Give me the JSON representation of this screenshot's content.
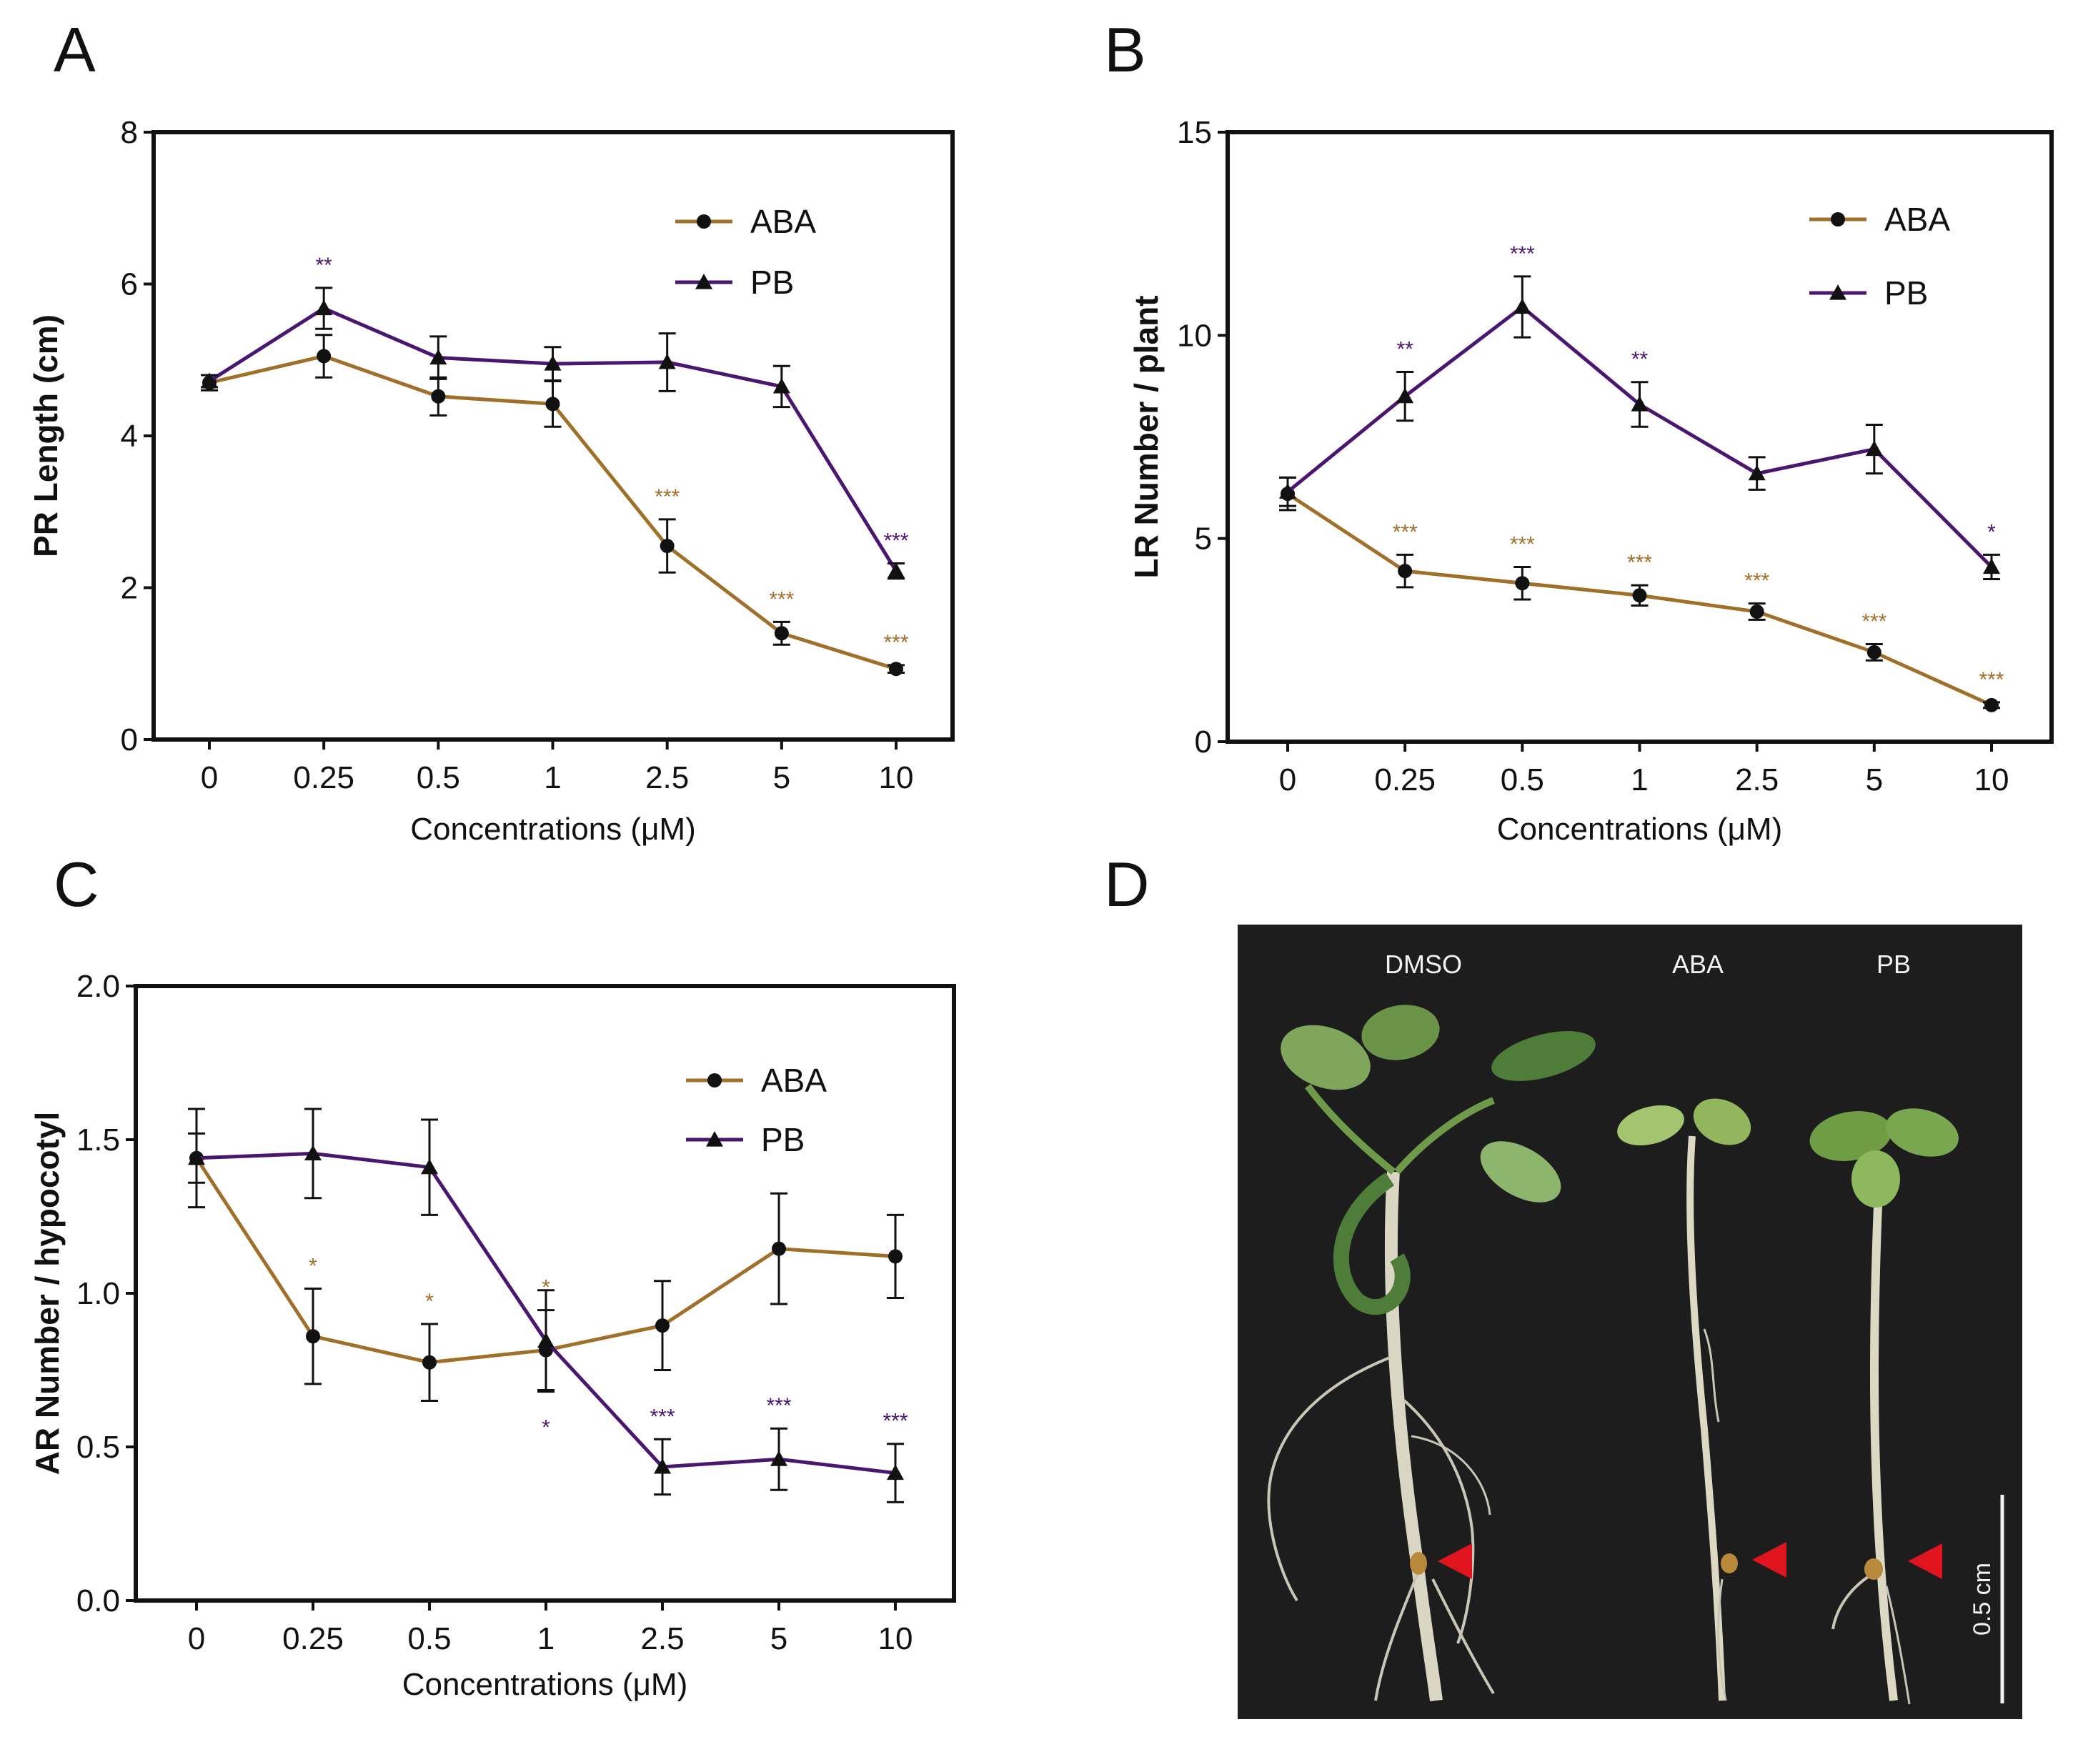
{
  "colors": {
    "ABA": "#a0702a",
    "PB": "#4b1670",
    "axis": "#111111",
    "photo_bg": "#1d1d1d",
    "arrow": "#e0141e"
  },
  "chart_data": [
    {
      "panel": "A",
      "type": "line",
      "categories": [
        "0",
        "0.25",
        "0.5",
        "1",
        "2.5",
        "5",
        "10"
      ],
      "xlabel": "Concentrations (μM)",
      "ylabel": "PR Length (cm)",
      "ylim": [
        0,
        8
      ],
      "yticks": [
        "0",
        "2",
        "4",
        "6",
        "8"
      ],
      "legend_position": "top-right",
      "series": [
        {
          "name": "ABA",
          "marker": "circle",
          "values": [
            4.7,
            5.05,
            4.52,
            4.42,
            2.55,
            1.4,
            0.93
          ],
          "errors": [
            0.1,
            0.28,
            0.25,
            0.3,
            0.35,
            0.15,
            0.05
          ],
          "sig": [
            "",
            "",
            "",
            "",
            "***",
            "***",
            "***"
          ]
        },
        {
          "name": "PB",
          "marker": "triangle",
          "values": [
            4.72,
            5.68,
            5.03,
            4.95,
            4.97,
            4.65,
            2.22
          ],
          "errors": [
            0.08,
            0.27,
            0.28,
            0.22,
            0.38,
            0.27,
            0.1
          ],
          "sig": [
            "",
            "**",
            "",
            "",
            "",
            "",
            "***"
          ]
        }
      ]
    },
    {
      "panel": "B",
      "type": "line",
      "categories": [
        "0",
        "0.25",
        "0.5",
        "1",
        "2.5",
        "5",
        "10"
      ],
      "xlabel": "Concentrations (μM)",
      "ylabel": "LR Number / plant",
      "ylim": [
        0,
        15
      ],
      "yticks": [
        "0",
        "5",
        "10",
        "15"
      ],
      "legend_position": "top-right",
      "series": [
        {
          "name": "ABA",
          "marker": "circle",
          "values": [
            6.1,
            4.2,
            3.9,
            3.6,
            3.2,
            2.2,
            0.9
          ],
          "errors": [
            0.4,
            0.4,
            0.4,
            0.25,
            0.2,
            0.2,
            0.07
          ],
          "sig": [
            "",
            "***",
            "***",
            "***",
            "***",
            "***",
            "***"
          ]
        },
        {
          "name": "PB",
          "marker": "triangle",
          "values": [
            6.15,
            8.5,
            10.7,
            8.3,
            6.6,
            7.2,
            4.3
          ],
          "errors": [
            0.35,
            0.6,
            0.75,
            0.55,
            0.4,
            0.6,
            0.3
          ],
          "sig": [
            "",
            "**",
            "***",
            "**",
            "",
            "",
            "*"
          ]
        }
      ]
    },
    {
      "panel": "C",
      "type": "line",
      "categories": [
        "0",
        "0.25",
        "0.5",
        "1",
        "2.5",
        "5",
        "10"
      ],
      "xlabel": "Concentrations (μM)",
      "ylabel": "AR Number / hypocotyl",
      "ylim": [
        0.0,
        2.0
      ],
      "yticks": [
        "0.0",
        "0.5",
        "1.0",
        "1.5",
        "2.0"
      ],
      "legend_position": "top-right",
      "series": [
        {
          "name": "ABA",
          "marker": "circle",
          "values": [
            1.44,
            0.86,
            0.775,
            0.815,
            0.895,
            1.145,
            1.12
          ],
          "errors": [
            0.16,
            0.155,
            0.125,
            0.13,
            0.145,
            0.18,
            0.135
          ],
          "sig": [
            "",
            "*",
            "*",
            "*",
            "",
            "",
            ""
          ]
        },
        {
          "name": "PB",
          "marker": "triangle",
          "values": [
            1.44,
            1.455,
            1.41,
            0.845,
            0.435,
            0.46,
            0.415
          ],
          "errors": [
            0.08,
            0.145,
            0.155,
            0.165,
            0.09,
            0.1,
            0.095
          ],
          "sig": [
            "",
            "",
            "",
            "*",
            "***",
            "***",
            "***"
          ]
        }
      ]
    }
  ],
  "panel_d": {
    "letter": "D",
    "labels": [
      "DMSO",
      "ABA",
      "PB"
    ],
    "scale_bar": "0.5 cm"
  }
}
